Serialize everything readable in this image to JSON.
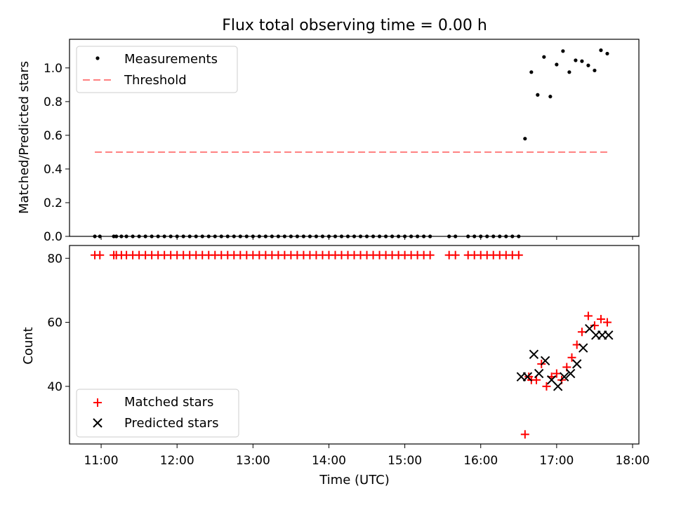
{
  "chart_data": [
    {
      "type": "scatter",
      "title": "Flux total observing time = 0.00 h",
      "xlabel": "",
      "ylabel": "Matched/Predicted stars",
      "xlim": [
        "10:35",
        "18:05"
      ],
      "ylim": [
        0.0,
        1.17
      ],
      "yticks": [
        "0.0",
        "0.2",
        "0.4",
        "0.6",
        "0.8",
        "1.0"
      ],
      "ytick_values": [
        0.0,
        0.2,
        0.4,
        0.6,
        0.8,
        1.0
      ],
      "legend_position": "upper left",
      "series": [
        {
          "name": "Measurements",
          "kind": "scatter",
          "marker": "dot",
          "color": "#000000",
          "x": [
            "10:55",
            "10:59",
            "11:10",
            "11:12",
            "11:16",
            "11:20",
            "11:25",
            "11:30",
            "11:35",
            "11:40",
            "11:45",
            "11:50",
            "11:55",
            "12:00",
            "12:05",
            "12:10",
            "12:15",
            "12:20",
            "12:25",
            "12:30",
            "12:35",
            "12:40",
            "12:45",
            "12:50",
            "12:55",
            "13:00",
            "13:05",
            "13:10",
            "13:15",
            "13:20",
            "13:25",
            "13:30",
            "13:35",
            "13:40",
            "13:45",
            "13:50",
            "13:55",
            "14:00",
            "14:05",
            "14:10",
            "14:15",
            "14:20",
            "14:25",
            "14:30",
            "14:35",
            "14:40",
            "14:45",
            "14:50",
            "14:55",
            "15:00",
            "15:05",
            "15:10",
            "15:15",
            "15:20",
            "15:35",
            "15:40",
            "15:50",
            "15:55",
            "16:00",
            "16:05",
            "16:10",
            "16:15",
            "16:20",
            "16:25",
            "16:30",
            "16:35",
            "16:40",
            "16:45",
            "16:50",
            "16:55",
            "17:00",
            "17:05",
            "17:10",
            "17:15",
            "17:20",
            "17:25",
            "17:30",
            "17:35",
            "17:40"
          ],
          "y": [
            0,
            0,
            0,
            0,
            0,
            0,
            0,
            0,
            0,
            0,
            0,
            0,
            0,
            0,
            0,
            0,
            0,
            0,
            0,
            0,
            0,
            0,
            0,
            0,
            0,
            0,
            0,
            0,
            0,
            0,
            0,
            0,
            0,
            0,
            0,
            0,
            0,
            0,
            0,
            0,
            0,
            0,
            0,
            0,
            0,
            0,
            0,
            0,
            0,
            0,
            0,
            0,
            0,
            0,
            0,
            0,
            0,
            0,
            0,
            0,
            0,
            0,
            0,
            0,
            0,
            0.58,
            0.975,
            0.84,
            1.065,
            0.83,
            1.02,
            1.1,
            0.975,
            1.045,
            1.04,
            1.015,
            0.985,
            1.105,
            1.085
          ]
        },
        {
          "name": "Threshold",
          "kind": "line",
          "style": "dashed",
          "color": "#ff7f7f",
          "x": [
            "10:55",
            "17:40"
          ],
          "y": [
            0.5,
            0.5
          ]
        }
      ]
    },
    {
      "type": "scatter",
      "title": "",
      "xlabel": "Time (UTC)",
      "ylabel": "Count",
      "xlim": [
        "10:35",
        "18:05"
      ],
      "ylim": [
        22,
        84
      ],
      "yticks": [
        "40",
        "60",
        "80"
      ],
      "ytick_values": [
        40,
        60,
        80
      ],
      "xticks": [
        "11:00",
        "12:00",
        "13:00",
        "14:00",
        "15:00",
        "16:00",
        "17:00",
        "18:00"
      ],
      "legend_position": "lower left",
      "series": [
        {
          "name": "Matched stars",
          "marker": "plus",
          "color": "#ff0000",
          "x": [
            "10:55",
            "10:59",
            "11:10",
            "11:12",
            "11:16",
            "11:20",
            "11:25",
            "11:30",
            "11:35",
            "11:40",
            "11:45",
            "11:50",
            "11:55",
            "12:00",
            "12:05",
            "12:10",
            "12:15",
            "12:20",
            "12:25",
            "12:30",
            "12:35",
            "12:40",
            "12:45",
            "12:50",
            "12:55",
            "13:00",
            "13:05",
            "13:10",
            "13:15",
            "13:20",
            "13:25",
            "13:30",
            "13:35",
            "13:40",
            "13:45",
            "13:50",
            "13:55",
            "14:00",
            "14:05",
            "14:10",
            "14:15",
            "14:20",
            "14:25",
            "14:30",
            "14:35",
            "14:40",
            "14:45",
            "14:50",
            "14:55",
            "15:00",
            "15:05",
            "15:10",
            "15:15",
            "15:20",
            "15:35",
            "15:40",
            "15:50",
            "15:55",
            "16:00",
            "16:05",
            "16:10",
            "16:15",
            "16:20",
            "16:25",
            "16:30",
            "16:35",
            "16:38",
            "16:40",
            "16:44",
            "16:48",
            "16:52",
            "16:56",
            "17:00",
            "17:04",
            "17:08",
            "17:12",
            "17:16",
            "17:20",
            "17:25",
            "17:30",
            "17:35",
            "17:40"
          ],
          "y": [
            81,
            81,
            81,
            81,
            81,
            81,
            81,
            81,
            81,
            81,
            81,
            81,
            81,
            81,
            81,
            81,
            81,
            81,
            81,
            81,
            81,
            81,
            81,
            81,
            81,
            81,
            81,
            81,
            81,
            81,
            81,
            81,
            81,
            81,
            81,
            81,
            81,
            81,
            81,
            81,
            81,
            81,
            81,
            81,
            81,
            81,
            81,
            81,
            81,
            81,
            81,
            81,
            81,
            81,
            81,
            81,
            81,
            81,
            81,
            81,
            81,
            81,
            81,
            81,
            81,
            25,
            43,
            42,
            42,
            47,
            40,
            43,
            44,
            42,
            46,
            49,
            53,
            57,
            62,
            59,
            61,
            60
          ]
        },
        {
          "name": "Predicted stars",
          "marker": "x",
          "color": "#000000",
          "x": [
            "16:32",
            "16:37",
            "16:42",
            "16:46",
            "16:51",
            "16:56",
            "17:01",
            "17:06",
            "17:11",
            "17:16",
            "17:21",
            "17:26",
            "17:31",
            "17:36",
            "17:41"
          ],
          "y": [
            43,
            43,
            50,
            44,
            48,
            42,
            40,
            43,
            44,
            47,
            52,
            58,
            56,
            56,
            56
          ]
        }
      ]
    }
  ]
}
